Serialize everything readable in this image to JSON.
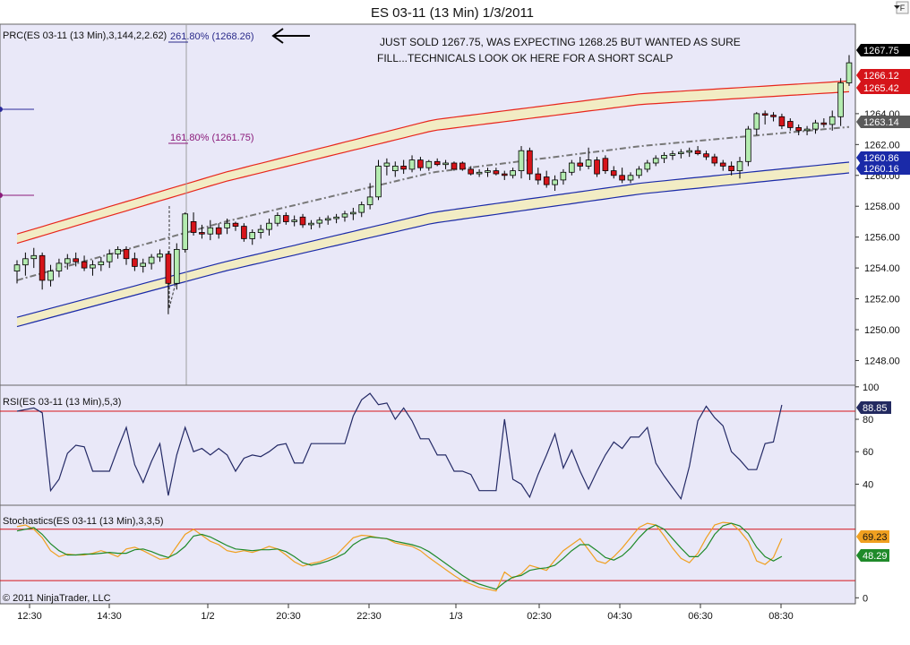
{
  "window": {
    "title": "ES 03-11 (13 Min)  1/3/2011",
    "corner_glyph": "F",
    "copyright": "© 2011 NinjaTrader, LLC"
  },
  "colors": {
    "panel_bg": "#e9e8f8",
    "band_fill": "#f2ecc4",
    "keltner_upper": "#e8251c",
    "keltner_lower": "#1a2aa8",
    "midline": "#777777",
    "up_candle": "#b4ecb0",
    "down_candle": "#d6141a",
    "rsi_line": "#242a66",
    "level_line": "#d6141a",
    "stoch_k": "#f0a020",
    "stoch_d": "#1f8a2a"
  },
  "annotation": {
    "line1": "JUST SOLD 1267.75, WAS EXPECTING 1268.25 BUT WANTED AS SURE",
    "line2": "FILL...TECHNICALS LOOK OK HERE FOR A SHORT SCALP",
    "arrow": "arrow-left-icon"
  },
  "chart_data": [
    {
      "type": "candlestick",
      "title": "PRC(ES 03-11 (13 Min),3,144,2,2.62)",
      "ylim": [
        1246.4,
        1269.8
      ],
      "y_ticks": [
        "1264.00",
        "1262.00",
        "1260.00",
        "1258.00",
        "1256.00",
        "1254.00",
        "1252.00",
        "1250.00",
        "1248.00"
      ],
      "x_ticks": [
        "12:30",
        "14:30",
        "1/2",
        "20:30",
        "22:30",
        "1/3",
        "02:30",
        "04:30",
        "06:30",
        "08:30"
      ],
      "fib_levels": [
        {
          "label": "261.80% (1268.26)",
          "value": 1268.26
        },
        {
          "label": "161.80% (1261.75)",
          "value": 1261.75
        }
      ],
      "price_tags": [
        {
          "label": "1267.75",
          "value": 1267.75,
          "style": "last"
        },
        {
          "label": "1266.12",
          "value": 1266.12,
          "style": "upper"
        },
        {
          "label": "1265.42",
          "value": 1265.42,
          "style": "upper"
        },
        {
          "label": "1263.14",
          "value": 1263.14,
          "style": "mid"
        },
        {
          "label": "1260.86",
          "value": 1260.86,
          "style": "lower"
        },
        {
          "label": "1260.16",
          "value": 1260.16,
          "style": "lower"
        }
      ],
      "bands": {
        "upper_outer": [
          1256.2,
          1260.2,
          1263.6,
          1265.3,
          1266.12
        ],
        "upper_inner": [
          1255.6,
          1259.6,
          1262.9,
          1264.6,
          1265.42
        ],
        "mid": [
          1253.2,
          1257.0,
          1260.2,
          1261.9,
          1263.14
        ],
        "lower_outer": [
          1250.8,
          1254.4,
          1257.6,
          1259.5,
          1260.86
        ],
        "lower_inner": [
          1250.2,
          1253.8,
          1256.9,
          1258.8,
          1260.16
        ]
      },
      "candles": [
        {
          "o": 1253.8,
          "h": 1254.5,
          "l": 1253.0,
          "c": 1254.2
        },
        {
          "o": 1254.2,
          "h": 1255.0,
          "l": 1253.5,
          "c": 1254.6
        },
        {
          "o": 1254.6,
          "h": 1255.3,
          "l": 1254.0,
          "c": 1254.8
        },
        {
          "o": 1254.8,
          "h": 1255.0,
          "l": 1252.6,
          "c": 1253.2
        },
        {
          "o": 1253.2,
          "h": 1254.2,
          "l": 1252.8,
          "c": 1253.8
        },
        {
          "o": 1253.8,
          "h": 1254.6,
          "l": 1253.4,
          "c": 1254.3
        },
        {
          "o": 1254.3,
          "h": 1254.9,
          "l": 1253.9,
          "c": 1254.6
        },
        {
          "o": 1254.6,
          "h": 1255.0,
          "l": 1254.1,
          "c": 1254.4
        },
        {
          "o": 1254.4,
          "h": 1254.8,
          "l": 1253.8,
          "c": 1254.0
        },
        {
          "o": 1254.0,
          "h": 1254.5,
          "l": 1253.5,
          "c": 1254.2
        },
        {
          "o": 1254.2,
          "h": 1254.7,
          "l": 1253.8,
          "c": 1254.4
        },
        {
          "o": 1254.4,
          "h": 1255.2,
          "l": 1254.0,
          "c": 1254.9
        },
        {
          "o": 1254.9,
          "h": 1255.4,
          "l": 1254.6,
          "c": 1255.2
        },
        {
          "o": 1255.2,
          "h": 1255.4,
          "l": 1254.2,
          "c": 1254.6
        },
        {
          "o": 1254.6,
          "h": 1255.0,
          "l": 1253.8,
          "c": 1254.1
        },
        {
          "o": 1254.1,
          "h": 1254.6,
          "l": 1253.7,
          "c": 1254.3
        },
        {
          "o": 1254.3,
          "h": 1254.9,
          "l": 1253.9,
          "c": 1254.7
        },
        {
          "o": 1254.7,
          "h": 1255.2,
          "l": 1254.4,
          "c": 1254.9
        },
        {
          "o": 1254.9,
          "h": 1255.1,
          "l": 1251.0,
          "c": 1253.0
        },
        {
          "o": 1253.0,
          "h": 1255.6,
          "l": 1252.6,
          "c": 1255.2
        },
        {
          "o": 1255.2,
          "h": 1257.6,
          "l": 1255.0,
          "c": 1257.5
        },
        {
          "o": 1257.0,
          "h": 1257.6,
          "l": 1256.1,
          "c": 1256.3
        },
        {
          "o": 1256.3,
          "h": 1256.8,
          "l": 1255.9,
          "c": 1256.2
        },
        {
          "o": 1256.2,
          "h": 1257.1,
          "l": 1255.8,
          "c": 1256.6
        },
        {
          "o": 1256.6,
          "h": 1256.9,
          "l": 1255.9,
          "c": 1256.2
        },
        {
          "o": 1256.6,
          "h": 1257.2,
          "l": 1256.2,
          "c": 1256.9
        },
        {
          "o": 1256.9,
          "h": 1257.0,
          "l": 1256.4,
          "c": 1256.7
        },
        {
          "o": 1256.7,
          "h": 1256.9,
          "l": 1255.7,
          "c": 1255.9
        },
        {
          "o": 1255.9,
          "h": 1256.5,
          "l": 1255.5,
          "c": 1256.3
        },
        {
          "o": 1256.3,
          "h": 1256.8,
          "l": 1255.9,
          "c": 1256.5
        },
        {
          "o": 1256.5,
          "h": 1257.2,
          "l": 1256.1,
          "c": 1256.9
        },
        {
          "o": 1256.9,
          "h": 1257.6,
          "l": 1256.7,
          "c": 1257.4
        },
        {
          "o": 1257.4,
          "h": 1257.6,
          "l": 1256.8,
          "c": 1257.0
        },
        {
          "o": 1257.0,
          "h": 1257.4,
          "l": 1256.7,
          "c": 1257.1
        },
        {
          "o": 1257.3,
          "h": 1257.5,
          "l": 1256.6,
          "c": 1256.8
        },
        {
          "o": 1256.8,
          "h": 1257.1,
          "l": 1256.5,
          "c": 1256.9
        },
        {
          "o": 1256.9,
          "h": 1257.3,
          "l": 1256.6,
          "c": 1257.1
        },
        {
          "o": 1257.1,
          "h": 1257.4,
          "l": 1256.8,
          "c": 1257.2
        },
        {
          "o": 1257.2,
          "h": 1257.5,
          "l": 1256.9,
          "c": 1257.3
        },
        {
          "o": 1257.3,
          "h": 1257.7,
          "l": 1257.0,
          "c": 1257.5
        },
        {
          "o": 1257.5,
          "h": 1257.9,
          "l": 1257.1,
          "c": 1257.6
        },
        {
          "o": 1257.6,
          "h": 1258.3,
          "l": 1257.3,
          "c": 1258.1
        },
        {
          "o": 1258.1,
          "h": 1259.5,
          "l": 1257.8,
          "c": 1258.6
        },
        {
          "o": 1258.6,
          "h": 1261.0,
          "l": 1258.4,
          "c": 1260.6
        },
        {
          "o": 1260.6,
          "h": 1261.1,
          "l": 1260.0,
          "c": 1260.8
        },
        {
          "o": 1260.3,
          "h": 1260.9,
          "l": 1259.9,
          "c": 1260.6
        },
        {
          "o": 1260.6,
          "h": 1261.0,
          "l": 1260.1,
          "c": 1260.4
        },
        {
          "o": 1260.4,
          "h": 1261.3,
          "l": 1260.2,
          "c": 1261.0
        },
        {
          "o": 1261.0,
          "h": 1261.2,
          "l": 1260.3,
          "c": 1260.5
        },
        {
          "o": 1260.5,
          "h": 1261.0,
          "l": 1260.3,
          "c": 1260.9
        },
        {
          "o": 1260.9,
          "h": 1261.1,
          "l": 1260.6,
          "c": 1260.7
        },
        {
          "o": 1260.7,
          "h": 1261.0,
          "l": 1260.4,
          "c": 1260.8
        },
        {
          "o": 1260.8,
          "h": 1260.9,
          "l": 1260.3,
          "c": 1260.4
        },
        {
          "o": 1260.8,
          "h": 1260.9,
          "l": 1260.3,
          "c": 1260.4
        },
        {
          "o": 1260.4,
          "h": 1260.6,
          "l": 1260.0,
          "c": 1260.1
        },
        {
          "o": 1260.1,
          "h": 1260.4,
          "l": 1259.9,
          "c": 1260.2
        },
        {
          "o": 1260.2,
          "h": 1260.5,
          "l": 1259.9,
          "c": 1260.3
        },
        {
          "o": 1260.3,
          "h": 1260.5,
          "l": 1260.0,
          "c": 1260.1
        },
        {
          "o": 1260.1,
          "h": 1260.3,
          "l": 1259.7,
          "c": 1260.0
        },
        {
          "o": 1260.0,
          "h": 1260.5,
          "l": 1259.8,
          "c": 1260.3
        },
        {
          "o": 1260.3,
          "h": 1261.9,
          "l": 1259.8,
          "c": 1261.6
        },
        {
          "o": 1261.6,
          "h": 1261.8,
          "l": 1259.7,
          "c": 1260.1
        },
        {
          "o": 1260.1,
          "h": 1260.5,
          "l": 1259.4,
          "c": 1259.7
        },
        {
          "o": 1259.9,
          "h": 1260.3,
          "l": 1259.2,
          "c": 1259.4
        },
        {
          "o": 1259.4,
          "h": 1260.0,
          "l": 1259.0,
          "c": 1259.7
        },
        {
          "o": 1259.7,
          "h": 1260.4,
          "l": 1259.4,
          "c": 1260.2
        },
        {
          "o": 1260.2,
          "h": 1261.0,
          "l": 1260.0,
          "c": 1260.8
        },
        {
          "o": 1260.8,
          "h": 1261.2,
          "l": 1260.3,
          "c": 1260.6
        },
        {
          "o": 1260.6,
          "h": 1261.8,
          "l": 1260.4,
          "c": 1261.0
        },
        {
          "o": 1261.0,
          "h": 1261.2,
          "l": 1259.9,
          "c": 1260.1
        },
        {
          "o": 1261.1,
          "h": 1261.3,
          "l": 1260.1,
          "c": 1260.3
        },
        {
          "o": 1260.3,
          "h": 1260.6,
          "l": 1259.8,
          "c": 1260.0
        },
        {
          "o": 1260.0,
          "h": 1260.5,
          "l": 1259.5,
          "c": 1259.7
        },
        {
          "o": 1259.7,
          "h": 1260.2,
          "l": 1259.5,
          "c": 1260.0
        },
        {
          "o": 1260.0,
          "h": 1260.6,
          "l": 1259.8,
          "c": 1260.4
        },
        {
          "o": 1260.4,
          "h": 1261.0,
          "l": 1260.2,
          "c": 1260.8
        },
        {
          "o": 1260.8,
          "h": 1261.3,
          "l": 1260.6,
          "c": 1261.1
        },
        {
          "o": 1261.1,
          "h": 1261.5,
          "l": 1260.8,
          "c": 1261.3
        },
        {
          "o": 1261.3,
          "h": 1261.6,
          "l": 1261.0,
          "c": 1261.4
        },
        {
          "o": 1261.4,
          "h": 1261.7,
          "l": 1261.1,
          "c": 1261.5
        },
        {
          "o": 1261.5,
          "h": 1261.8,
          "l": 1261.2,
          "c": 1261.6
        },
        {
          "o": 1261.6,
          "h": 1261.9,
          "l": 1261.3,
          "c": 1261.4
        },
        {
          "o": 1261.4,
          "h": 1261.6,
          "l": 1261.0,
          "c": 1261.2
        },
        {
          "o": 1261.2,
          "h": 1261.4,
          "l": 1260.6,
          "c": 1260.8
        },
        {
          "o": 1260.8,
          "h": 1261.0,
          "l": 1260.3,
          "c": 1260.6
        },
        {
          "o": 1260.6,
          "h": 1260.9,
          "l": 1260.0,
          "c": 1260.3
        },
        {
          "o": 1260.3,
          "h": 1261.2,
          "l": 1259.8,
          "c": 1260.9
        },
        {
          "o": 1260.9,
          "h": 1263.2,
          "l": 1260.6,
          "c": 1263.0
        },
        {
          "o": 1263.0,
          "h": 1264.1,
          "l": 1262.6,
          "c": 1264.0
        },
        {
          "o": 1264.0,
          "h": 1264.2,
          "l": 1263.3,
          "c": 1263.9
        },
        {
          "o": 1263.9,
          "h": 1264.1,
          "l": 1263.5,
          "c": 1263.8
        },
        {
          "o": 1263.8,
          "h": 1264.0,
          "l": 1263.0,
          "c": 1263.2
        },
        {
          "o": 1263.5,
          "h": 1263.7,
          "l": 1262.9,
          "c": 1263.1
        },
        {
          "o": 1263.1,
          "h": 1263.3,
          "l": 1262.6,
          "c": 1262.9
        },
        {
          "o": 1262.9,
          "h": 1263.2,
          "l": 1262.6,
          "c": 1263.0
        },
        {
          "o": 1263.0,
          "h": 1263.6,
          "l": 1262.7,
          "c": 1263.4
        },
        {
          "o": 1263.4,
          "h": 1263.7,
          "l": 1263.1,
          "c": 1263.3
        },
        {
          "o": 1263.3,
          "h": 1264.2,
          "l": 1262.9,
          "c": 1263.8
        },
        {
          "o": 1263.8,
          "h": 1266.3,
          "l": 1263.2,
          "c": 1266.0
        },
        {
          "o": 1266.0,
          "h": 1267.8,
          "l": 1265.8,
          "c": 1267.3
        }
      ]
    },
    {
      "type": "line",
      "title": "RSI(ES 03-11 (13 Min),5,3)",
      "ylim": [
        27,
        101
      ],
      "y_ticks": [
        "100",
        "80",
        "60",
        "40"
      ],
      "levels": [
        85
      ],
      "value_tag": "88.85",
      "series": [
        {
          "values": [
            85,
            86,
            87,
            84,
            36,
            43,
            59,
            64,
            63,
            48,
            48,
            48,
            62,
            75,
            52,
            41,
            54,
            65,
            33,
            58,
            75,
            60,
            62,
            58,
            62,
            58,
            48,
            56,
            58,
            57,
            60,
            64,
            65,
            53,
            53,
            65,
            65,
            65,
            65,
            65,
            82,
            92,
            96,
            89,
            90,
            80,
            87,
            79,
            68,
            68,
            58,
            58,
            48,
            48,
            46,
            36,
            36,
            36,
            80,
            43,
            40,
            32,
            46,
            58,
            71,
            50,
            61,
            48,
            37,
            48,
            58,
            66,
            62,
            69,
            69,
            75,
            53,
            45,
            38,
            31,
            51,
            79,
            88,
            81,
            76,
            60,
            55,
            49,
            49,
            65,
            66,
            88.85
          ]
        }
      ]
    },
    {
      "type": "line",
      "title": "Stochastics(ES 03-11 (13 Min),3,3,5)",
      "ylim": [
        -7,
        108
      ],
      "y_ticks": [
        "0"
      ],
      "levels": [
        80,
        20
      ],
      "value_tags": [
        "69.23",
        "48.29"
      ],
      "series": [
        {
          "values": [
            83,
            85,
            80,
            70,
            55,
            48,
            51,
            50,
            50,
            52,
            55,
            52,
            48,
            57,
            59,
            55,
            50,
            45,
            46,
            60,
            74,
            80,
            73,
            66,
            62,
            55,
            53,
            55,
            53,
            56,
            60,
            57,
            50,
            42,
            37,
            40,
            42,
            46,
            50,
            60,
            70,
            73,
            72,
            70,
            69,
            64,
            62,
            60,
            55,
            47,
            40,
            33,
            26,
            20,
            16,
            12,
            10,
            8,
            30,
            23,
            28,
            38,
            35,
            32,
            44,
            55,
            62,
            69,
            56,
            43,
            40,
            48,
            58,
            70,
            82,
            87,
            85,
            72,
            58,
            46,
            41,
            52,
            70,
            85,
            88,
            87,
            78,
            66,
            43,
            39,
            47,
            69.23
          ]
        },
        {
          "values": [
            78,
            80,
            82,
            74,
            63,
            55,
            50,
            50,
            51,
            51,
            52,
            53,
            52,
            52,
            56,
            57,
            54,
            50,
            47,
            52,
            60,
            72,
            74,
            71,
            66,
            61,
            57,
            56,
            55,
            56,
            56,
            57,
            54,
            48,
            41,
            38,
            40,
            43,
            47,
            52,
            62,
            68,
            71,
            70,
            69,
            66,
            64,
            62,
            59,
            54,
            47,
            40,
            33,
            26,
            20,
            16,
            13,
            10,
            18,
            24,
            26,
            32,
            34,
            35,
            38,
            46,
            55,
            62,
            62,
            55,
            47,
            44,
            49,
            58,
            70,
            80,
            85,
            80,
            69,
            58,
            48,
            48,
            58,
            74,
            84,
            87,
            84,
            75,
            59,
            48,
            43,
            48.29
          ]
        }
      ]
    }
  ]
}
